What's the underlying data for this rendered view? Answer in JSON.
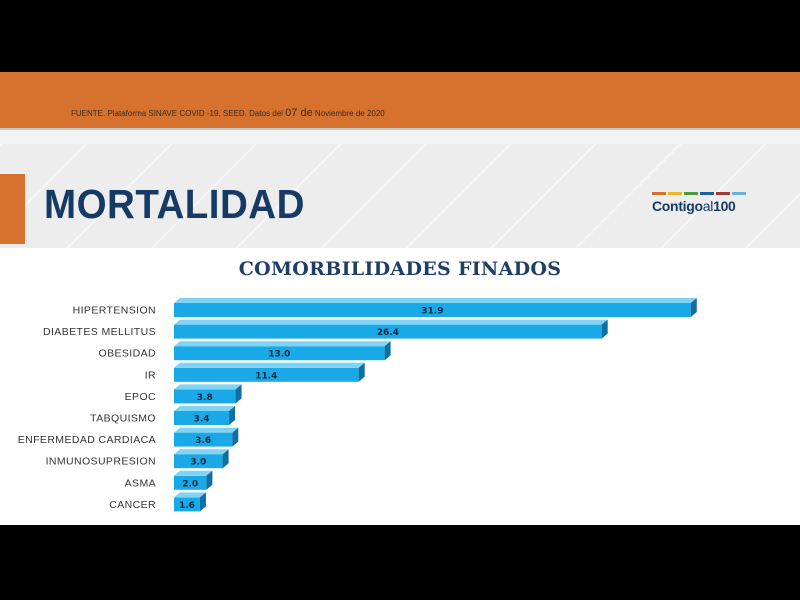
{
  "source_text": "FUENTE. Plataforma SINAVE COVID -19, SEED. Datos del",
  "source_date_big": "07 de",
  "source_date_rest": "Noviembre de 2020",
  "main_title": "MORTALIDAD",
  "logo": {
    "text_main": "Contigo",
    "text_mid": "al",
    "text_num": "100",
    "bar_colors": [
      "#d6722e",
      "#f0b429",
      "#4a9b3c",
      "#1f5f9e",
      "#a33a3a",
      "#6bb0d8"
    ]
  },
  "colors": {
    "bar": "#19a9e6",
    "bar_top": "#7fd3f5",
    "bar_side": "#0e6fa3",
    "orange": "#d6722e",
    "navy": "#153a66"
  },
  "chart_data": {
    "type": "bar",
    "orientation": "horizontal",
    "title": "COMORBILIDADES FINADOS",
    "categories": [
      "HIPERTENSION",
      "DIABETES MELLITUS",
      "OBESIDAD",
      "IR",
      "EPOC",
      "TABQUISMO",
      "ENFERMEDAD CARDIACA",
      "INMUNOSUPRESION",
      "ASMA",
      "CANCER"
    ],
    "values": [
      31.9,
      26.4,
      13.0,
      11.4,
      3.8,
      3.4,
      3.6,
      3.0,
      2.0,
      1.6
    ],
    "data_labels": [
      "31.9",
      "26.4",
      "13.0",
      "11.4",
      "3.8",
      "3.4",
      "3.6",
      "3.0",
      "2.0",
      "1.6"
    ],
    "xlim": [
      0,
      35
    ],
    "grid": false,
    "legend": "none"
  }
}
